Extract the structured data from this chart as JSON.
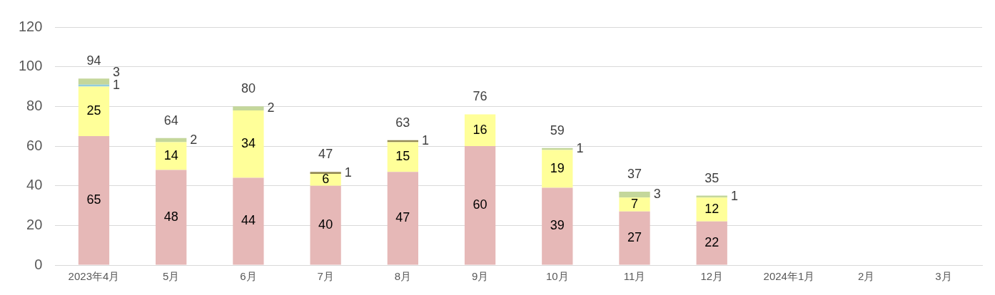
{
  "chart_data": {
    "type": "bar",
    "stacked": true,
    "grid": "y",
    "legend": false,
    "categories": [
      "2023年4月",
      "5月",
      "6月",
      "7月",
      "8月",
      "9月",
      "10月",
      "11月",
      "12月",
      "2024年1月",
      "2月",
      "3月"
    ],
    "ylim": [
      0,
      120
    ],
    "yticks": [
      0,
      20,
      40,
      60,
      80,
      100,
      120
    ],
    "series": [
      {
        "color": "#e6b8b7",
        "values": [
          65,
          48,
          44,
          40,
          47,
          60,
          39,
          27,
          22,
          null,
          null,
          null
        ],
        "value_labels": [
          "65",
          "48",
          "44",
          "40",
          "47",
          "60",
          "39",
          "27",
          "22",
          null,
          null,
          null
        ]
      },
      {
        "color": "#ffff99",
        "values": [
          25,
          14,
          34,
          6,
          15,
          16,
          19,
          7,
          12,
          null,
          null,
          null
        ],
        "value_labels": [
          "25",
          "14",
          "34",
          "6",
          "15",
          "16",
          "19",
          "7",
          "12",
          null,
          null,
          null
        ]
      },
      {
        "color": "#92cddc",
        "values": [
          1,
          0,
          0,
          0,
          0,
          0,
          0,
          0,
          0,
          null,
          null,
          null
        ],
        "value_labels": [
          "1",
          null,
          null,
          null,
          null,
          null,
          null,
          null,
          null,
          null,
          null,
          null
        ]
      },
      {
        "color": "#948a54",
        "values": [
          0,
          0,
          0,
          1,
          1,
          0,
          0,
          0,
          0,
          null,
          null,
          null
        ],
        "value_labels": [
          null,
          null,
          null,
          "1",
          "1",
          null,
          null,
          null,
          null,
          null,
          null,
          null
        ]
      },
      {
        "color": "#c4d79b",
        "values": [
          3,
          2,
          2,
          0,
          0,
          0,
          1,
          3,
          1,
          null,
          null,
          null
        ],
        "value_labels": [
          "3",
          "2",
          "2",
          null,
          null,
          null,
          "1",
          "3",
          "1",
          null,
          null,
          null
        ]
      }
    ],
    "totals": [
      "94",
      "64",
      "80",
      "47",
      "63",
      "76",
      "59",
      "37",
      "35",
      null,
      null,
      null
    ]
  }
}
